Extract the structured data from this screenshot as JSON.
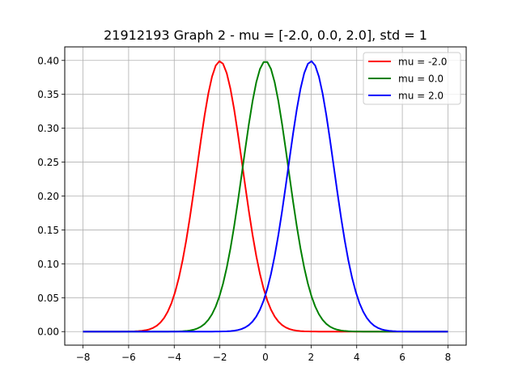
{
  "chart_data": {
    "type": "line",
    "title": "21912193 Graph 2 - mu = [-2.0, 0.0, 2.0], std = 1",
    "xlabel": "",
    "ylabel": "",
    "xlim": [
      -8.8,
      8.8
    ],
    "ylim": [
      -0.02,
      0.42
    ],
    "xticks": [
      -8,
      -6,
      -4,
      -2,
      0,
      2,
      4,
      6,
      8
    ],
    "xtick_labels": [
      "−8",
      "−6",
      "−4",
      "−2",
      "0",
      "2",
      "4",
      "6",
      "8"
    ],
    "yticks": [
      0.0,
      0.05,
      0.1,
      0.15,
      0.2,
      0.25,
      0.3,
      0.35,
      0.4
    ],
    "ytick_labels": [
      "0.00",
      "0.05",
      "0.10",
      "0.15",
      "0.20",
      "0.25",
      "0.30",
      "0.35",
      "0.40"
    ],
    "grid": true,
    "legend_position": "top-right",
    "x_range": [
      -8,
      8
    ],
    "sample_count": 100,
    "std": 1,
    "series": [
      {
        "name": "mu = -2.0",
        "mu": -2.0,
        "color": "#ff0000"
      },
      {
        "name": "mu = 0.0",
        "mu": 0.0,
        "color": "#008000"
      },
      {
        "name": "mu = 2.0",
        "mu": 2.0,
        "color": "#0000ff"
      }
    ]
  }
}
